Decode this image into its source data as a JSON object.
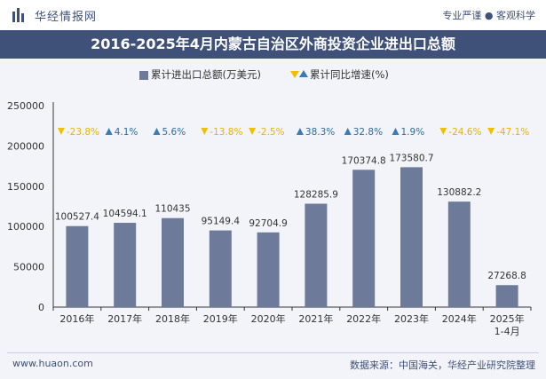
{
  "header": {
    "site_name": "华经情报网",
    "tagline": "专业严谨 ● 客观科学"
  },
  "footer": {
    "url": "www.huaon.com",
    "source": "数据来源：中国海关，华经产业研究院整理"
  },
  "colors": {
    "bar": "#6e7a99",
    "title_bg": "#3f5179",
    "up": "#2e6b9e",
    "down": "#e8b400",
    "up_marker": "#3a7ab8",
    "down_marker": "#f0c000"
  },
  "chart_data": {
    "type": "bar",
    "title": "2016-2025年4月内蒙古自治区外商投资企业进出口总额",
    "categories": [
      "2016年",
      "2017年",
      "2018年",
      "2019年",
      "2020年",
      "2021年",
      "2022年",
      "2023年",
      "2024年",
      "2025年\n1-4月"
    ],
    "series": [
      {
        "name": "累计进出口总额(万美元)",
        "values": [
          100527.4,
          104594.1,
          110435,
          95149.4,
          92704.9,
          128285.9,
          170374.8,
          173580.7,
          130882.2,
          27268.8
        ],
        "labels": [
          "100527.4",
          "104594.1",
          "110435",
          "95149.4",
          "92704.9",
          "128285.9",
          "170374.8",
          "173580.7",
          "130882.2",
          "27268.8"
        ]
      },
      {
        "name": "累计同比增速(%)",
        "values": [
          -23.8,
          4.1,
          5.6,
          -13.8,
          -2.5,
          38.3,
          32.8,
          1.9,
          -24.6,
          -47.1
        ],
        "labels": [
          "-23.8%",
          "4.1%",
          "5.6%",
          "-13.8%",
          "-2.5%",
          "38.3%",
          "32.8%",
          "1.9%",
          "-24.6%",
          "-47.1%"
        ]
      }
    ],
    "y_ticks": [
      0,
      50000,
      100000,
      150000,
      200000,
      250000
    ],
    "ylim": [
      0,
      250000
    ],
    "legend": [
      "累计进出口总额(万美元)",
      "累计同比增速(%)"
    ]
  }
}
